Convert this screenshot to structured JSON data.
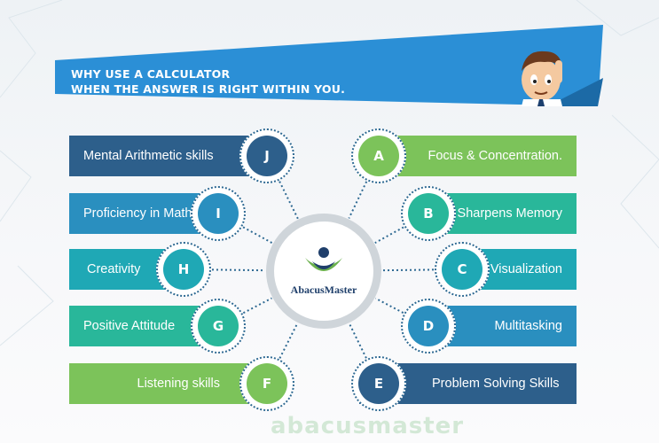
{
  "banner": {
    "line1": "WHY USE A CALCULATOR",
    "line2": "WHEN THE ANSWER IS RIGHT WITHIN YOU."
  },
  "hub": {
    "brand": "AbacusMaster"
  },
  "left_items": [
    {
      "letter": "J",
      "label": "Mental Arithmetic skills",
      "color": "#2d5f8b"
    },
    {
      "letter": "I",
      "label": "Proficiency in Maths",
      "color": "#2a8fbf"
    },
    {
      "letter": "H",
      "label": "Creativity",
      "color": "#1fa8b5"
    },
    {
      "letter": "G",
      "label": "Positive Attitude",
      "color": "#29b79a"
    },
    {
      "letter": "F",
      "label": "Listening skills",
      "color": "#7cc35a"
    }
  ],
  "right_items": [
    {
      "letter": "A",
      "label": "Focus & Concentration.",
      "color": "#7cc35a"
    },
    {
      "letter": "B",
      "label": "Sharpens Memory",
      "color": "#29b79a"
    },
    {
      "letter": "C",
      "label": "Visualization",
      "color": "#1fa8b5"
    },
    {
      "letter": "D",
      "label": "Multitasking",
      "color": "#2a8fbf"
    },
    {
      "letter": "E",
      "label": "Problem Solving Skills",
      "color": "#2d5f8b"
    }
  ],
  "watermark": "abacusmaster",
  "colors": {
    "banner_blue": "#2b8fd6",
    "hub_ring": "#cfd5da",
    "connector": "#2f6a93"
  }
}
